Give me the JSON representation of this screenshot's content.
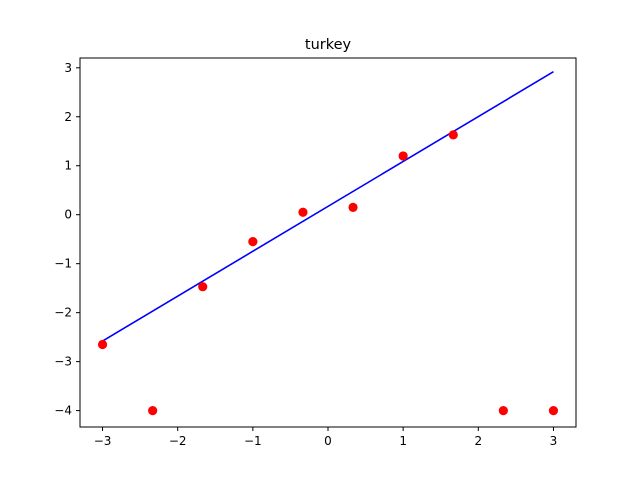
{
  "chart_data": {
    "type": "scatter",
    "title": "turkey",
    "xlabel": "",
    "ylabel": "",
    "xlim": [
      -3.3,
      3.3
    ],
    "ylim": [
      -4.335,
      3.2
    ],
    "xticks": [
      -3,
      -2,
      -1,
      0,
      1,
      2,
      3
    ],
    "yticks": [
      -4,
      -3,
      -2,
      -1,
      0,
      1,
      2,
      3
    ],
    "xtick_labels": [
      "−3",
      "−2",
      "−1",
      "0",
      "1",
      "2",
      "3"
    ],
    "ytick_labels": [
      "−4",
      "−3",
      "−2",
      "−1",
      "0",
      "1",
      "2",
      "3"
    ],
    "grid": false,
    "series": [
      {
        "kind": "scatter",
        "color": "#ff0000",
        "points": [
          [
            -3.0,
            -2.65
          ],
          [
            -2.333,
            -4.0
          ],
          [
            -1.667,
            -1.47
          ],
          [
            -1.0,
            -0.55
          ],
          [
            -0.333,
            0.05
          ],
          [
            0.333,
            0.15
          ],
          [
            1.0,
            1.2
          ],
          [
            1.667,
            1.63
          ],
          [
            2.333,
            -4.0
          ],
          [
            3.0,
            -4.0
          ]
        ]
      },
      {
        "kind": "line",
        "color": "#0000ff",
        "points": [
          [
            -3.0,
            -2.58
          ],
          [
            3.0,
            2.92
          ]
        ]
      }
    ]
  }
}
